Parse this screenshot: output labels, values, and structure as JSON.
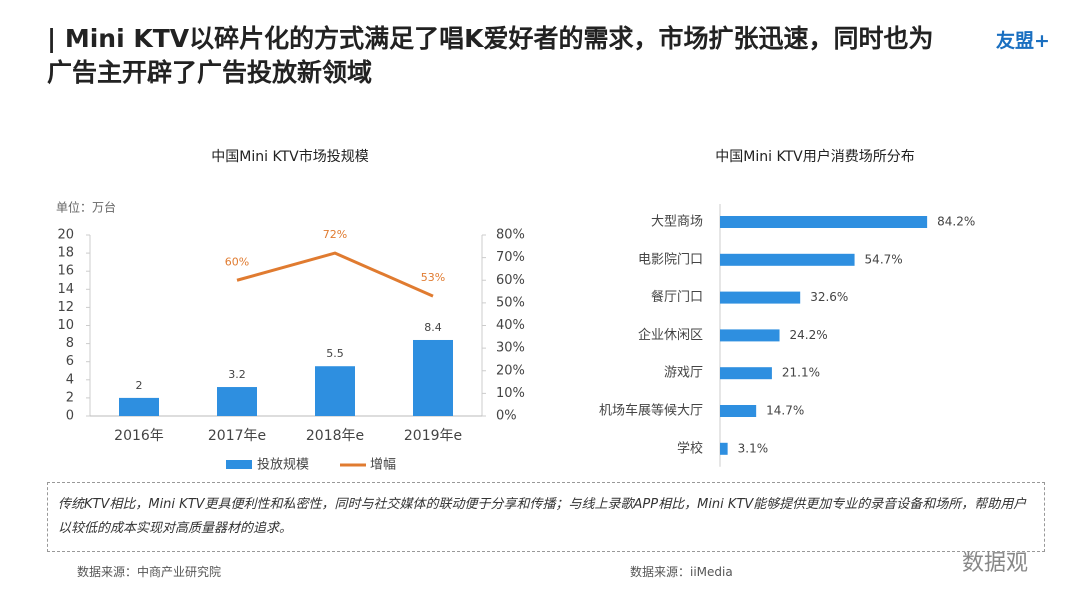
{
  "title": "| Mini KTV以碎片化的方式满足了唱K爱好者的需求，市场扩张迅速，同时也为广告主开辟了广告投放新领域",
  "logo": "友盟+",
  "chart_data": [
    {
      "type": "bar",
      "title": "中国Mini KTV市场投规模",
      "ylabel": "单位：万台",
      "categories": [
        "2016年",
        "2017年e",
        "2018年e",
        "2019年e"
      ],
      "series": [
        {
          "name": "投放规模",
          "color": "#2e8fe0",
          "values": [
            2,
            3.2,
            5.5,
            8.4
          ]
        },
        {
          "name": "增幅",
          "color": "#e07b30",
          "axis": "y2",
          "values": [
            null,
            60,
            72,
            53
          ],
          "value_labels": [
            null,
            "60%",
            "72%",
            "53%"
          ]
        }
      ],
      "ylim": [
        0,
        20
      ],
      "yticks": [
        0,
        2,
        4,
        6,
        8,
        10,
        12,
        14,
        16,
        18,
        20
      ],
      "y2lim": [
        0,
        80
      ],
      "y2ticks": [
        {
          "value": 0,
          "label": "0%"
        },
        {
          "value": 10,
          "label": "10%"
        },
        {
          "value": 20,
          "label": "20%"
        },
        {
          "value": 30,
          "label": "30%"
        },
        {
          "value": 40,
          "label": "40%"
        },
        {
          "value": 50,
          "label": "50%"
        },
        {
          "value": 60,
          "label": "60%"
        },
        {
          "value": 70,
          "label": "70%"
        },
        {
          "value": 80,
          "label": "80%"
        }
      ],
      "legend": "bottom"
    },
    {
      "type": "hbar",
      "title": "中国Mini KTV用户消费场所分布",
      "color": "#2e8fe0",
      "categories": [
        "大型商场",
        "电影院门口",
        "餐厅门口",
        "企业休闲区",
        "游戏厅",
        "机场车展等候大厅",
        "学校"
      ],
      "values": [
        84.2,
        54.7,
        32.6,
        24.2,
        21.1,
        14.7,
        3.1
      ],
      "value_labels": [
        "84.2%",
        "54.7%",
        "32.6%",
        "24.2%",
        "21.1%",
        "14.7%",
        "3.1%"
      ]
    }
  ],
  "note": "传统KTV相比，Mini KTV更具便利性和私密性，同时与社交媒体的联动便于分享和传播；与线上录歌APP相比，Mini KTV能够提供更加专业的录音设备和场所，帮助用户以较低的成本实现对高质量器材的追求。",
  "sources": [
    "数据来源：中商产业研究院",
    "数据来源：iiMedia"
  ],
  "watermark": "数据观"
}
